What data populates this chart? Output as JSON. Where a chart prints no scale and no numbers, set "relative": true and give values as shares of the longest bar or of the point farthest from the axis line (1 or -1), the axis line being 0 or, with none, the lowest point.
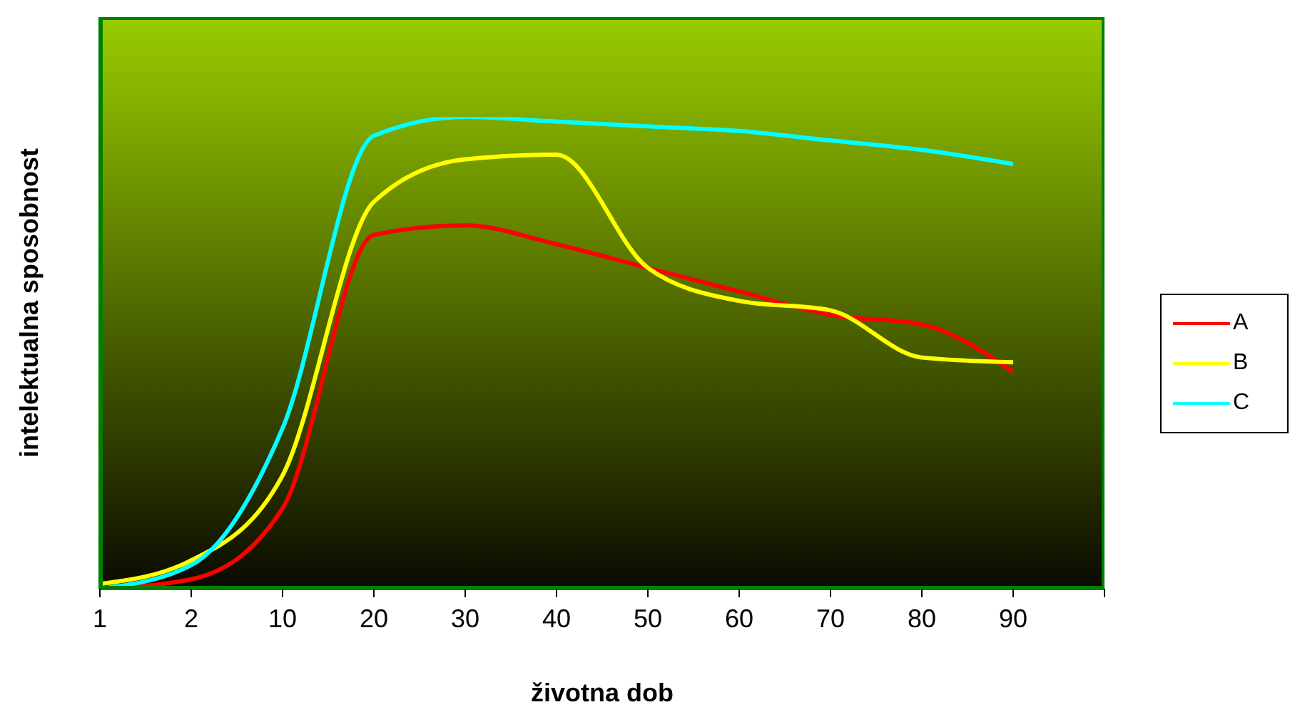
{
  "chart_data": {
    "type": "line",
    "xlabel": "životna dob",
    "ylabel": "intelektualna sposobnost",
    "relative": true,
    "legend": "right",
    "grid": false,
    "marker": "none",
    "line_style": "solid",
    "categories": [
      "1",
      "2",
      "10",
      "20",
      "30",
      "40",
      "50",
      "60",
      "70",
      "80",
      "90",
      null
    ],
    "series": [
      {
        "name": "A",
        "color": "#ff0000",
        "values": [
          0,
          0.02,
          0.17,
          0.75,
          0.77,
          0.73,
          0.68,
          0.63,
          0.58,
          0.56,
          0.46,
          null
        ]
      },
      {
        "name": "B",
        "color": "#ffff00",
        "values": [
          0.01,
          0.06,
          0.24,
          0.82,
          0.91,
          0.92,
          0.68,
          0.61,
          0.59,
          0.49,
          0.48,
          null
        ]
      },
      {
        "name": "C",
        "color": "#00ffff",
        "values": [
          0,
          0.05,
          0.34,
          0.96,
          1,
          0.99,
          0.98,
          0.97,
          0.95,
          0.93,
          0.9,
          null
        ]
      }
    ]
  }
}
